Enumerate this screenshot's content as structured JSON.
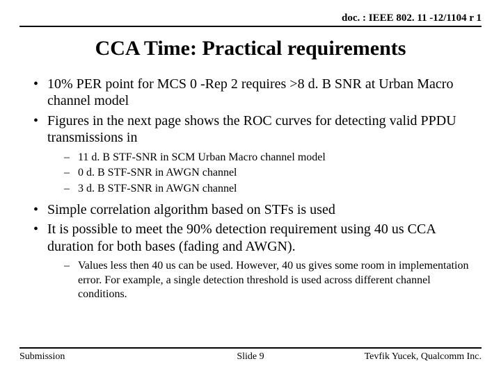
{
  "header": {
    "doc_id": "doc. : IEEE 802. 11 -12/1104 r 1"
  },
  "title": "CCA Time: Practical requirements",
  "bullets": {
    "b1": "10% PER point for MCS 0 -Rep 2 requires >8 d. B SNR at Urban Macro channel model",
    "b2": "Figures in the next page shows the ROC curves for detecting valid PPDU transmissions in",
    "b2_sub": {
      "s1": "11 d. B STF-SNR in SCM Urban Macro channel model",
      "s2": "0 d. B STF-SNR in AWGN channel",
      "s3": "3 d. B STF-SNR in AWGN channel"
    },
    "b3": "Simple correlation algorithm based on STFs is used",
    "b4": "It is possible to meet the 90% detection requirement using 40 us CCA duration for both bases (fading and AWGN).",
    "b4_sub": {
      "s1": "Values less then 40 us can be used. However, 40 us gives some room in implementation error. For example, a single detection threshold is used across different channel conditions."
    }
  },
  "footer": {
    "left": "Submission",
    "center": "Slide 9",
    "right": "Tevfik Yucek, Qualcomm Inc."
  },
  "style": {
    "background_color": "#ffffff",
    "text_color": "#000000",
    "rule_color": "#000000",
    "font_family": "Times New Roman",
    "title_fontsize_pt": 30,
    "body_fontsize_pt": 20,
    "sub_fontsize_pt": 16,
    "header_fontsize_pt": 15,
    "footer_fontsize_pt": 14
  }
}
